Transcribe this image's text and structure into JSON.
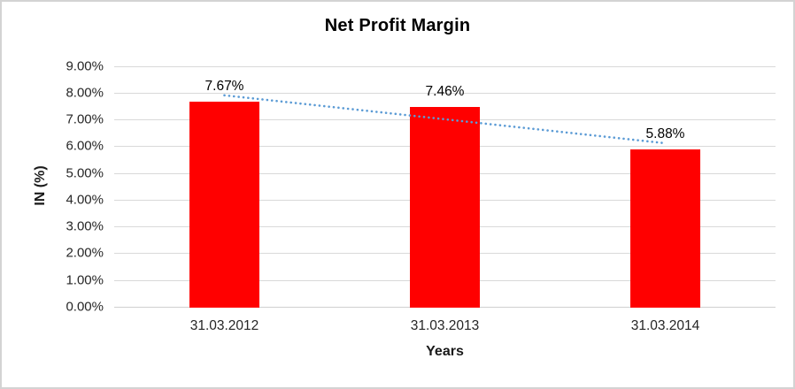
{
  "chart_data": {
    "type": "bar",
    "title": "Net Profit Margin",
    "xlabel": "Years",
    "ylabel": "IN (%)",
    "categories": [
      "31.03.2012",
      "31.03.2013",
      "31.03.2014"
    ],
    "values": [
      7.67,
      7.46,
      5.88
    ],
    "data_labels": [
      "7.67%",
      "7.46%",
      "5.88%"
    ],
    "ylim": [
      0,
      9
    ],
    "y_tick_step": 1,
    "y_tick_labels": [
      "0.00%",
      "1.00%",
      "2.00%",
      "3.00%",
      "4.00%",
      "5.00%",
      "6.00%",
      "7.00%",
      "8.00%",
      "9.00%"
    ],
    "grid": true,
    "legend": "none",
    "bar_color": "#ff0000",
    "trendline": {
      "style": "dotted",
      "color": "#5b9bd5",
      "start_value": 7.9,
      "end_value": 6.11
    }
  }
}
